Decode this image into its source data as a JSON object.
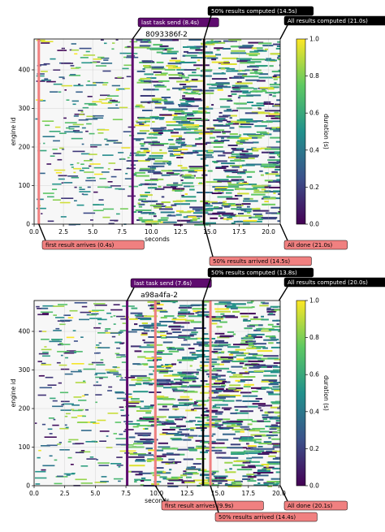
{
  "colors": {
    "first_result_box": "#f08080",
    "last_send_box": "#5e0b6e",
    "fifty_computed_box": "#000000",
    "all_done_computed_box": "#000000",
    "fifty_arrived_line": "#f08080",
    "grid": "#b0b0b0",
    "viridis_stops": [
      "#440154",
      "#3b528b",
      "#21918c",
      "#5ec962",
      "#fde725"
    ]
  },
  "chart_data": [
    {
      "type": "heatmap",
      "title": "8093386f-2",
      "xlabel": "seconds",
      "ylabel": "engine id",
      "xlim": [
        0,
        21
      ],
      "ylim": [
        0,
        480
      ],
      "xticks": [
        "0.0",
        "2.5",
        "5.0",
        "7.5",
        "10.0",
        "12.5",
        "15.0",
        "17.5",
        "20.0"
      ],
      "xtick_values": [
        0,
        2.5,
        5,
        7.5,
        10,
        12.5,
        15,
        17.5,
        20
      ],
      "yticks": [
        "0",
        "100",
        "200",
        "300",
        "400"
      ],
      "ytick_values": [
        0,
        100,
        200,
        300,
        400
      ],
      "grid": true,
      "colorbar": {
        "label": "duration (s)",
        "range": [
          0,
          1
        ],
        "ticks": [
          "0.0",
          "0.2",
          "0.4",
          "0.6",
          "0.8",
          "1.0"
        ]
      },
      "markers": {
        "first_result": {
          "t": 0.4,
          "label": "first result arrives (0.4s)"
        },
        "last_send": {
          "t": 8.4,
          "label": "last task send (8.4s)"
        },
        "fifty_computed": {
          "t": 14.5,
          "label": "50% results computed (14.5s)"
        },
        "fifty_arrived": {
          "t": 14.5,
          "label": "50% results arrived (14.5s)"
        },
        "all_done_computed": {
          "t": 21.0,
          "label": "All results computed (21.0s)"
        },
        "all_done": {
          "t": 21.0,
          "label": "All done (21.0s)"
        }
      }
    },
    {
      "type": "heatmap",
      "title": "a98a4fa-2",
      "xlabel": "seconds",
      "ylabel": "engine id",
      "xlim": [
        0,
        20.1
      ],
      "ylim": [
        0,
        480
      ],
      "xticks": [
        "0.0",
        "2.5",
        "5.0",
        "7.5",
        "10.0",
        "12.5",
        "15.0",
        "17.5",
        "20.0"
      ],
      "xtick_values": [
        0,
        2.5,
        5,
        7.5,
        10,
        12.5,
        15,
        17.5,
        20
      ],
      "yticks": [
        "0",
        "100",
        "200",
        "300",
        "400"
      ],
      "ytick_values": [
        0,
        100,
        200,
        300,
        400
      ],
      "grid": true,
      "colorbar": {
        "label": "duration (s)",
        "range": [
          0,
          1
        ],
        "ticks": [
          "0.0",
          "0.2",
          "0.4",
          "0.6",
          "0.8",
          "1.0"
        ]
      },
      "markers": {
        "first_result": {
          "t": 9.9,
          "label": "first result arrives (9.9s)"
        },
        "last_send": {
          "t": 7.6,
          "label": "last task send (7.6s)"
        },
        "fifty_computed": {
          "t": 13.8,
          "label": "50% results computed (13.8s)"
        },
        "fifty_arrived": {
          "t": 14.4,
          "label": "50% results arrived (14.4s)"
        },
        "all_done_computed": {
          "t": 20.0,
          "label": "All results computed (20.0s)"
        },
        "all_done": {
          "t": 20.1,
          "label": "All done (20.1s)"
        }
      }
    }
  ]
}
